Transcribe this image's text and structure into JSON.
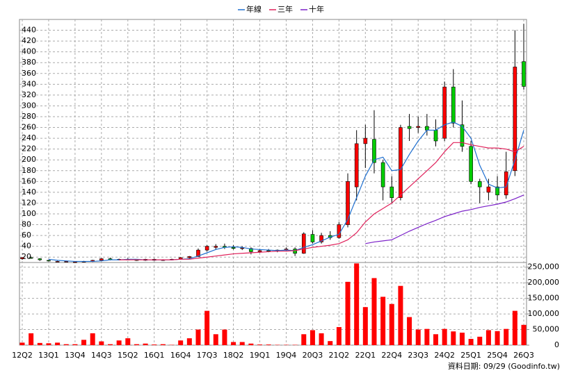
{
  "chart_data": {
    "type": "candlestick",
    "categories": [
      "12Q2",
      null,
      null,
      "13Q1",
      null,
      null,
      "13Q4",
      null,
      null,
      "14Q3",
      null,
      null,
      "15Q2",
      null,
      null,
      "16Q1",
      null,
      null,
      "16Q4",
      null,
      null,
      "17Q3",
      null,
      null,
      "18Q2",
      null,
      null,
      "19Q1",
      null,
      null,
      "19Q4",
      null,
      null,
      "20Q3",
      null,
      null,
      "21Q2",
      null,
      null,
      "22Q1",
      null,
      null,
      "22Q4",
      null,
      null,
      "23Q3",
      null,
      null,
      "24Q2",
      null,
      null,
      "25Q1",
      null,
      null,
      "25Q4",
      null,
      null,
      "26Q3"
    ],
    "open": [
      17,
      19,
      17,
      14,
      12,
      12,
      11,
      11,
      12,
      14,
      17,
      15,
      16,
      15,
      14,
      16,
      14,
      15,
      16,
      19,
      21,
      33,
      38,
      40,
      38,
      36,
      36,
      30,
      32,
      31,
      33,
      35,
      27,
      62,
      48,
      60,
      56,
      80,
      150,
      230,
      238,
      195,
      150,
      130,
      262,
      260,
      262,
      255,
      240,
      335,
      265,
      225,
      160,
      140,
      150,
      135,
      180,
      382
    ],
    "high": [
      20,
      21,
      18,
      15,
      13,
      13,
      12,
      13,
      15,
      18,
      19,
      17,
      18,
      16,
      17,
      17,
      16,
      17,
      20,
      22,
      36,
      42,
      44,
      45,
      42,
      40,
      38,
      35,
      35,
      34,
      38,
      38,
      66,
      70,
      65,
      68,
      85,
      175,
      255,
      265,
      292,
      200,
      170,
      265,
      285,
      280,
      285,
      275,
      345,
      368,
      310,
      235,
      165,
      165,
      170,
      215,
      440,
      452
    ],
    "low": [
      15,
      17,
      13,
      12,
      11,
      11,
      10,
      10,
      11,
      13,
      14,
      14,
      14,
      13,
      13,
      13,
      13,
      14,
      15,
      17,
      20,
      30,
      34,
      35,
      34,
      33,
      25,
      28,
      29,
      29,
      31,
      22,
      26,
      45,
      45,
      52,
      54,
      75,
      125,
      185,
      175,
      125,
      120,
      125,
      235,
      250,
      245,
      225,
      235,
      260,
      215,
      155,
      120,
      125,
      125,
      128,
      170,
      330
    ],
    "close": [
      19,
      18,
      15,
      13,
      12,
      12,
      11,
      12,
      14,
      17,
      15,
      16,
      15,
      14,
      16,
      14,
      15,
      16,
      19,
      21,
      33,
      40,
      40,
      38,
      36,
      37,
      30,
      32,
      31,
      33,
      35,
      27,
      63,
      48,
      60,
      56,
      80,
      160,
      230,
      240,
      195,
      150,
      130,
      260,
      258,
      262,
      255,
      235,
      335,
      268,
      225,
      160,
      150,
      150,
      135,
      178,
      372,
      336
    ],
    "up_color": "#ff0000",
    "down_color": "#00cc00",
    "ylim": [
      10,
      460
    ],
    "yticks": [
      20,
      40,
      60,
      80,
      100,
      120,
      140,
      160,
      180,
      200,
      220,
      240,
      260,
      280,
      300,
      320,
      340,
      360,
      380,
      400,
      420,
      440
    ],
    "grid": true,
    "legend": "top",
    "volume": {
      "color": "#ff0000",
      "values": [
        8000,
        38000,
        7000,
        6000,
        8000,
        3000,
        3000,
        17000,
        38000,
        12000,
        3000,
        15000,
        22000,
        3000,
        5000,
        2000,
        3000,
        1000,
        15000,
        22000,
        50000,
        110000,
        35000,
        50000,
        10000,
        10000,
        5000,
        2000,
        2000,
        1000,
        1000,
        1000,
        35000,
        48000,
        38000,
        13000,
        58000,
        203000,
        262000,
        122000,
        215000,
        155000,
        132000,
        190000,
        90000,
        50000,
        52000,
        35000,
        52000,
        44000,
        40000,
        20000,
        27000,
        48000,
        45000,
        52000,
        110000,
        65000
      ],
      "ylim": [
        0,
        265000
      ],
      "yticks": [
        0,
        {
          "value": 50000,
          "label": "50,000"
        },
        {
          "value": 100000,
          "label": "100,000"
        },
        {
          "value": 150000,
          "label": "150,000"
        },
        {
          "value": 200000,
          "label": "200,000"
        },
        {
          "value": 250000,
          "label": "250,000"
        }
      ]
    },
    "series": [
      {
        "name": "年線",
        "color": "#1e6fd0",
        "values": [
          null,
          null,
          null,
          16,
          14,
          13,
          12,
          12,
          12,
          13,
          15,
          15,
          16,
          16,
          15,
          15,
          15,
          15,
          16,
          17,
          22,
          28,
          34,
          38,
          39,
          38,
          35,
          34,
          33,
          32,
          33,
          32,
          38,
          43,
          50,
          57,
          62,
          90,
          130,
          170,
          200,
          205,
          180,
          182,
          210,
          235,
          255,
          255,
          265,
          270,
          262,
          240,
          190,
          155,
          148,
          150,
          200,
          255
        ]
      },
      {
        "name": "三年",
        "color": "#e0205a",
        "values": [
          null,
          null,
          null,
          null,
          null,
          null,
          null,
          null,
          null,
          null,
          null,
          15,
          15,
          15,
          15,
          15,
          15,
          15,
          16,
          16,
          18,
          20,
          22,
          24,
          26,
          27,
          28,
          29,
          30,
          31,
          31,
          32,
          35,
          38,
          40,
          42,
          45,
          52,
          65,
          85,
          100,
          110,
          120,
          135,
          150,
          165,
          180,
          195,
          215,
          232,
          232,
          228,
          225,
          222,
          222,
          220,
          215,
          225
        ]
      },
      {
        "name": "十年",
        "color": "#7a1fc8",
        "values": [
          null,
          null,
          null,
          null,
          null,
          null,
          null,
          null,
          null,
          null,
          null,
          null,
          null,
          null,
          null,
          null,
          null,
          null,
          null,
          null,
          null,
          null,
          null,
          null,
          null,
          null,
          null,
          null,
          null,
          null,
          null,
          null,
          null,
          null,
          null,
          null,
          null,
          null,
          null,
          45,
          48,
          50,
          52,
          60,
          68,
          75,
          82,
          88,
          95,
          100,
          105,
          108,
          112,
          115,
          118,
          122,
          128,
          135
        ]
      }
    ],
    "source": "資料日期: 09/29 (Goodinfo.tw)"
  }
}
